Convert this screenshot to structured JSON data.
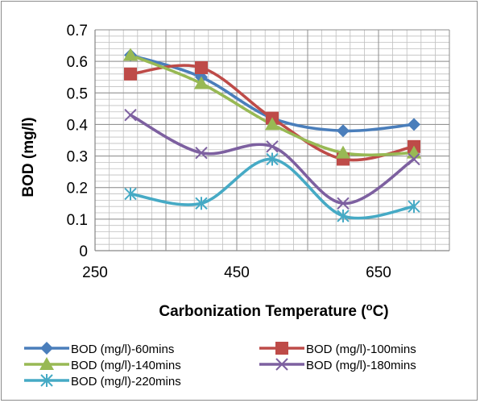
{
  "chart_data": {
    "type": "line",
    "title": "",
    "xlabel": "Carbonization Temperature (",
    "xlabel_sup": "o",
    "xlabel_suffix": "C)",
    "ylabel": "BOD (mg/l)",
    "xlim": [
      250,
      750
    ],
    "ylim": [
      0,
      0.7
    ],
    "x_ticks": [
      250,
      450,
      650
    ],
    "y_ticks": [
      0,
      0.1,
      0.2,
      0.3,
      0.4,
      0.5,
      0.6,
      0.7
    ],
    "x_tick_labels": [
      "250",
      "450",
      "650"
    ],
    "y_tick_labels": [
      "0",
      "0.1",
      "0.2",
      "0.3",
      "0.4",
      "0.5",
      "0.6",
      "0.7"
    ],
    "grid": true,
    "legend_position": "bottom",
    "x": [
      300,
      400,
      500,
      600,
      700
    ],
    "series": [
      {
        "name": "BOD (mg/l)-60mins",
        "values": [
          0.62,
          0.55,
          0.42,
          0.38,
          0.4
        ],
        "color": "#4a7ebb",
        "marker": "diamond"
      },
      {
        "name": "BOD (mg/l)-100mins",
        "values": [
          0.56,
          0.58,
          0.42,
          0.29,
          0.33
        ],
        "color": "#be4b48",
        "marker": "square"
      },
      {
        "name": "BOD (mg/l)-140mins",
        "values": [
          0.62,
          0.53,
          0.4,
          0.31,
          0.31
        ],
        "color": "#98b954",
        "marker": "triangle"
      },
      {
        "name": "BOD (mg/l)-180mins",
        "values": [
          0.43,
          0.31,
          0.33,
          0.15,
          0.29
        ],
        "color": "#7d60a0",
        "marker": "x"
      },
      {
        "name": "BOD (mg/l)-220mins",
        "values": [
          0.18,
          0.15,
          0.29,
          0.11,
          0.14
        ],
        "color": "#46aac5",
        "marker": "star"
      }
    ]
  }
}
